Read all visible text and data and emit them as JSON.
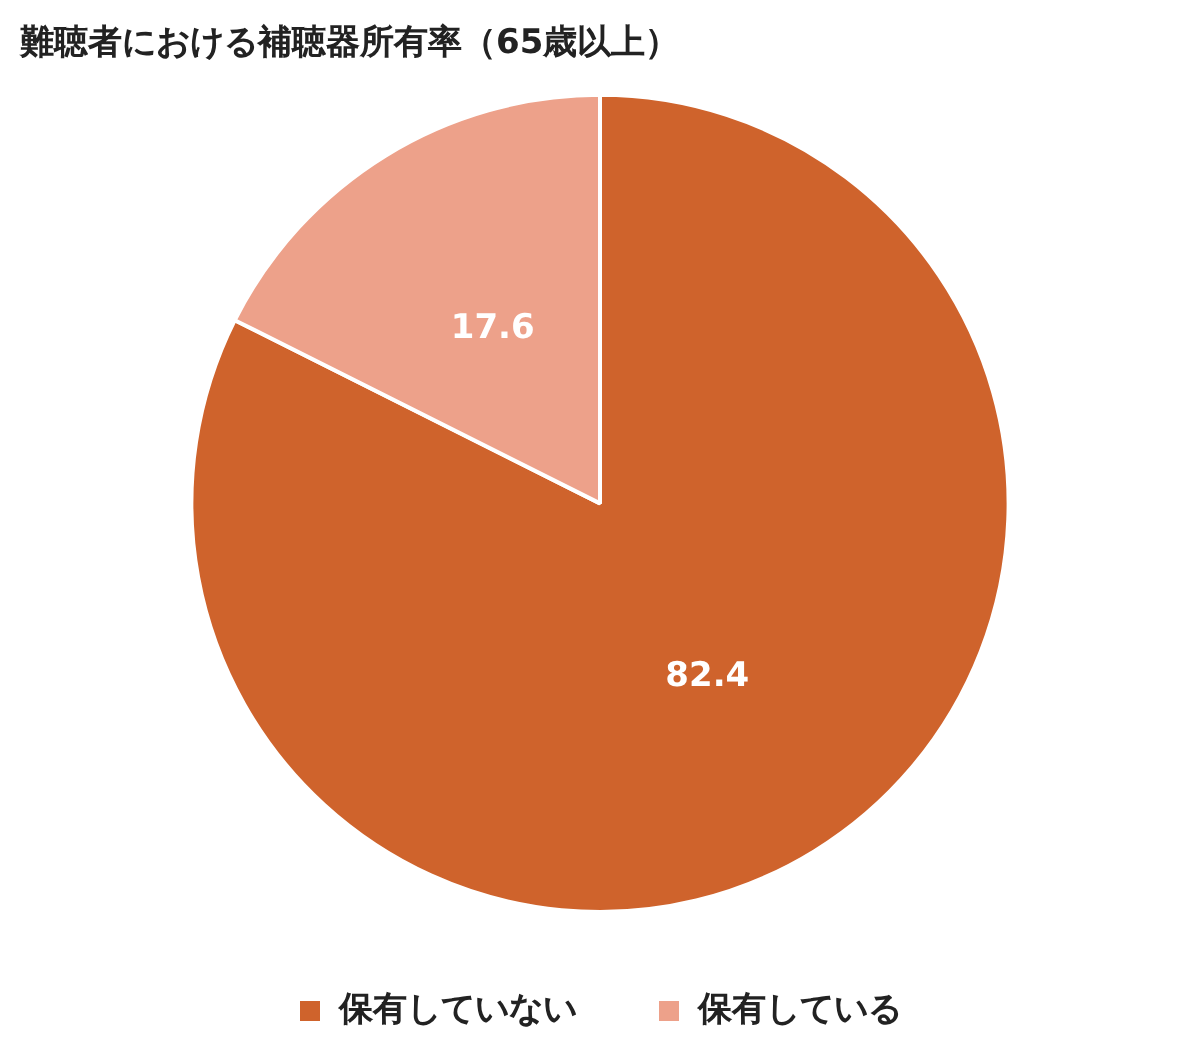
{
  "chart_data": {
    "type": "pie",
    "title": "難聴者における補聴器所有率（65歳以上）",
    "categories": [
      "保有していない",
      "保有している"
    ],
    "values": [
      82.4,
      17.6
    ],
    "colors": [
      "#cf632c",
      "#eda18a"
    ],
    "data_labels": true,
    "legend": "bottom"
  }
}
